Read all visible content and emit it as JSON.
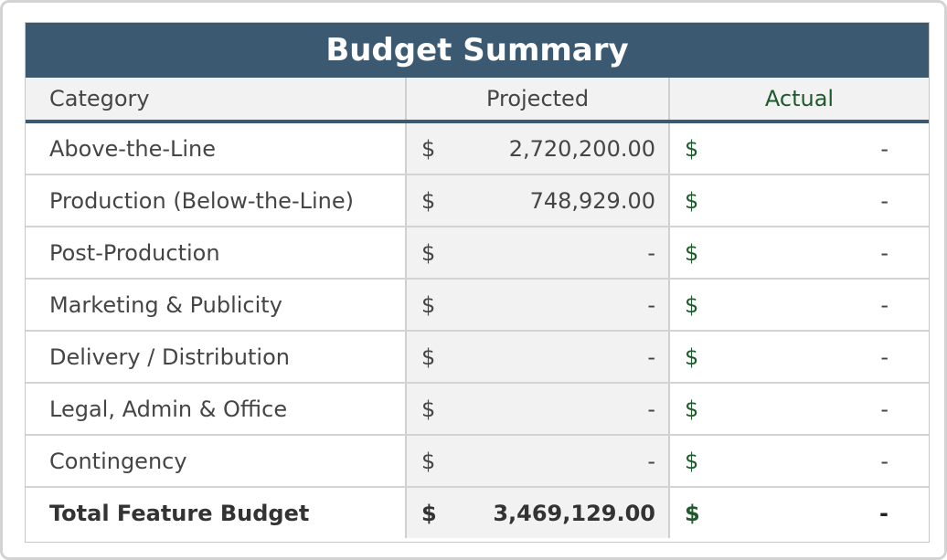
{
  "title": "Budget Summary",
  "headers": {
    "category": "Category",
    "projected": "Projected",
    "actual": "Actual"
  },
  "currency_symbol": "$",
  "rows": [
    {
      "category": "Above-the-Line",
      "projected": "2,720,200.00",
      "actual": "-"
    },
    {
      "category": "Production (Below-the-Line)",
      "projected": "748,929.00",
      "actual": "-"
    },
    {
      "category": "Post-Production",
      "projected": "-",
      "actual": "-"
    },
    {
      "category": "Marketing & Publicity",
      "projected": "-",
      "actual": "-"
    },
    {
      "category": "Delivery / Distribution",
      "projected": "-",
      "actual": "-"
    },
    {
      "category": "Legal, Admin & Office",
      "projected": "-",
      "actual": "-"
    },
    {
      "category": "Contingency",
      "projected": "-",
      "actual": "-"
    }
  ],
  "total": {
    "category": "Total Feature Budget",
    "projected": "3,469,129.00",
    "actual": "-"
  },
  "colors": {
    "title_bg": "#3b5a72",
    "actual_accent": "#1f5a2e",
    "projected_bg": "#f2f2f2"
  }
}
